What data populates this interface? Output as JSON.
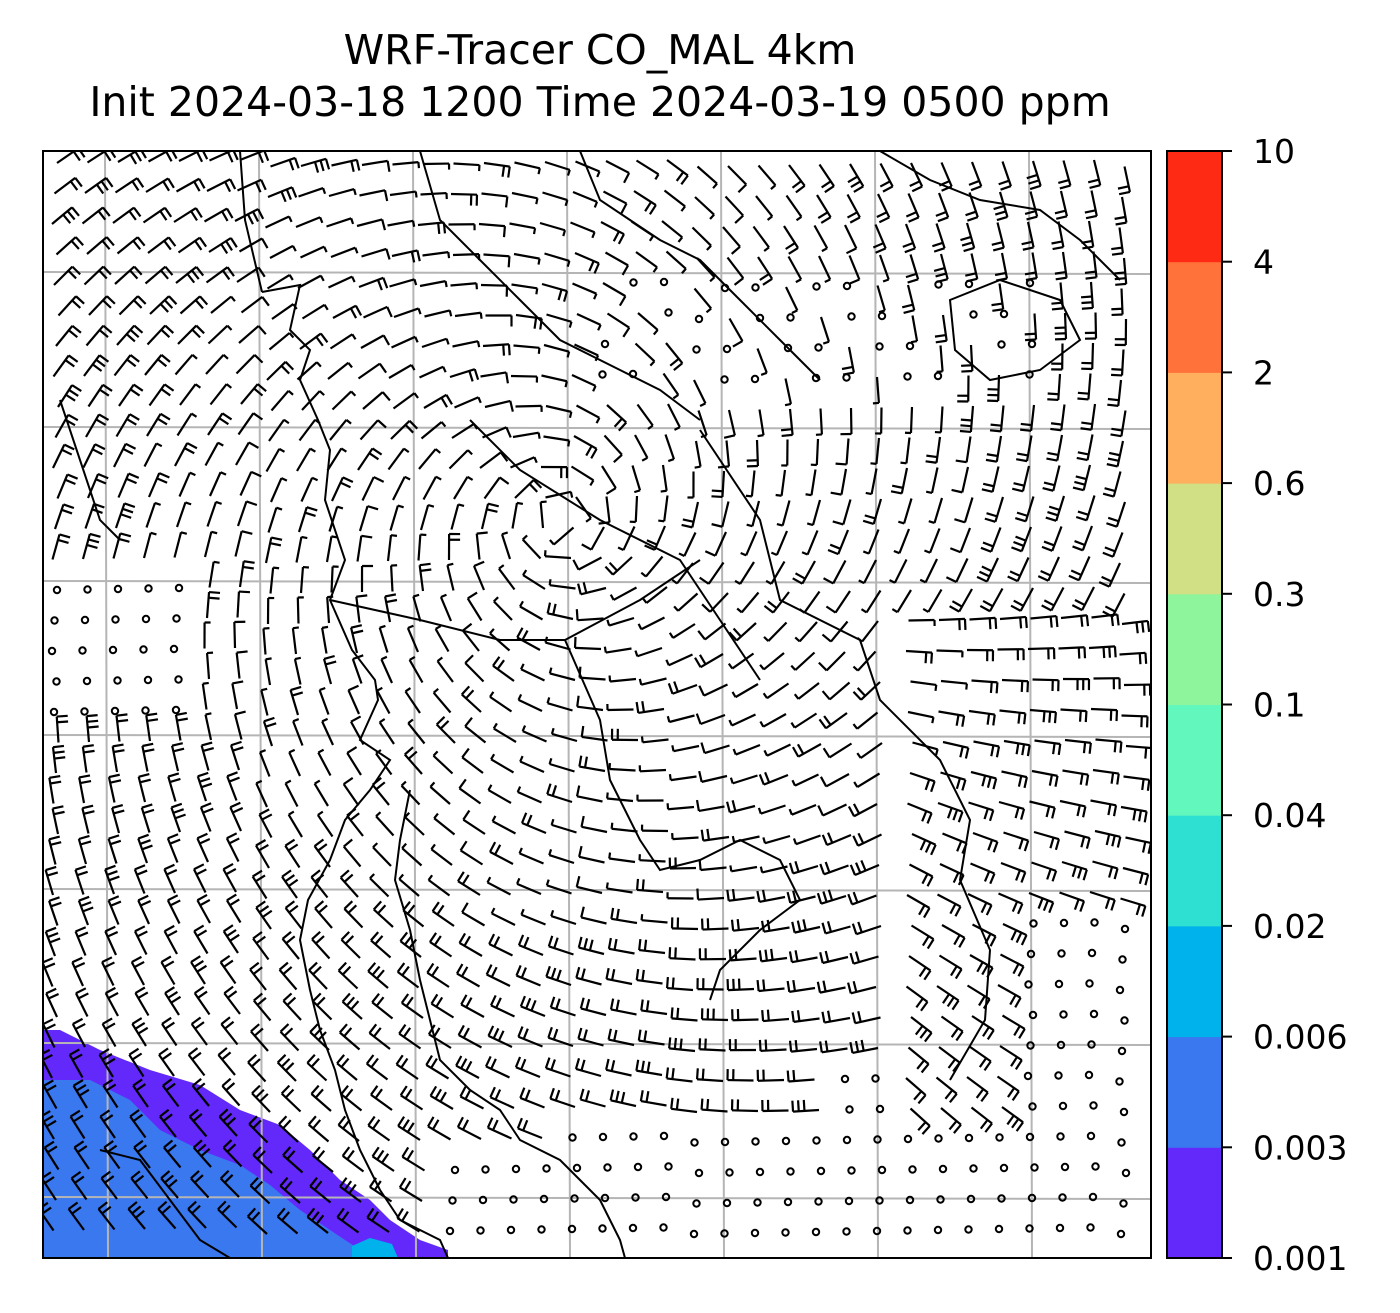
{
  "title": {
    "line1": "WRF-Tracer CO_MAL 4km",
    "line2": "Init 2024-03-18 1200 Time 2024-03-19 0500 ppm"
  },
  "chart_data": {
    "type": "heatmap",
    "title": "WRF-Tracer CO_MAL 4km\nInit 2024-03-18 1200 Time 2024-03-19 0500 ppm",
    "variable": "CO_MAL tracer concentration",
    "units": "ppm",
    "colorbar": {
      "levels": [
        0.001,
        0.003,
        0.006,
        0.02,
        0.04,
        0.1,
        0.3,
        0.6,
        2,
        4,
        10
      ],
      "tick_labels": [
        "0.001",
        "0.003",
        "0.006",
        "0.02",
        "0.04",
        "0.1",
        "0.3",
        "0.6",
        "2",
        "4",
        "10"
      ],
      "colors": [
        "#6329fb",
        "#3a78ef",
        "#00b2ec",
        "#2ee0d2",
        "#62f7bd",
        "#8ff59c",
        "#d1e085",
        "#ffaf5e",
        "#ff723a",
        "#ff2a14"
      ],
      "placement": "right"
    },
    "filled_regions": [
      {
        "band": "0.001-0.003",
        "color": "#6329fb",
        "location": "southwest corner"
      },
      {
        "band": "0.003-0.006",
        "color": "#3a78ef",
        "location": "southwest corner"
      },
      {
        "band": "0.006-0.02",
        "color": "#00b2ec",
        "location": "southern edge, small patch"
      }
    ],
    "overlays": [
      "wind barbs",
      "coastlines and borders",
      "lat/lon gridlines"
    ],
    "grid": true
  }
}
